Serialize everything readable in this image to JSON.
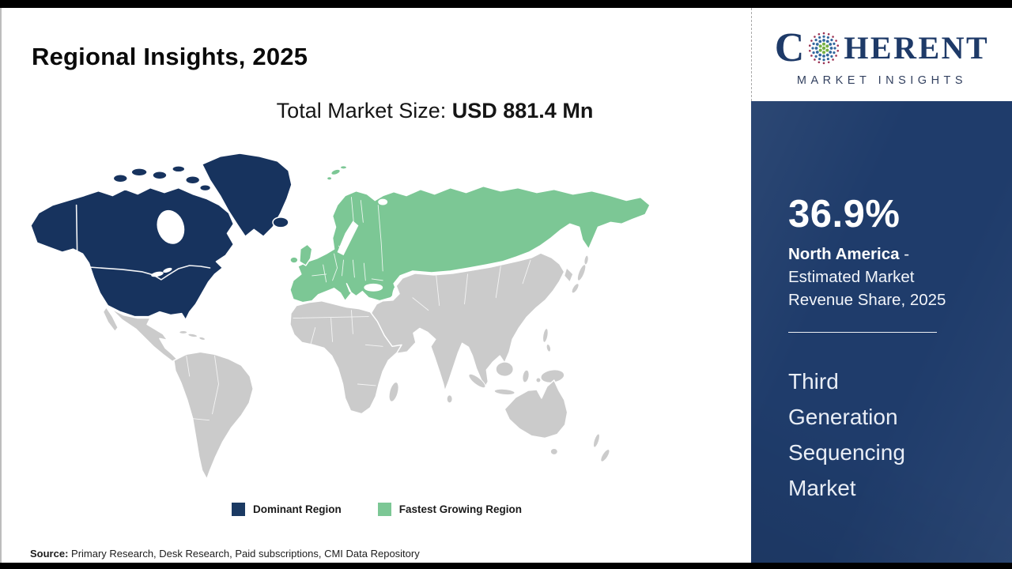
{
  "header": {
    "title": "Regional Insights, 2025"
  },
  "market_size": {
    "label": "Total Market Size: ",
    "value": "USD 881.4 Mn"
  },
  "logo": {
    "brand_c": "C",
    "brand_rest": "HERENT",
    "subtitle": "MARKET INSIGHTS",
    "dot_colors": {
      "green": "#76b043",
      "blue": "#33689e",
      "maroon": "#9c3353"
    }
  },
  "map": {
    "colors": {
      "dominant": "#17335e",
      "fastest_growing": "#7cc795",
      "other": "#cbcbcb",
      "border": "#ffffff"
    },
    "regions": {
      "dominant": [
        "North America",
        "Greenland",
        "Iceland"
      ],
      "fastest_growing": [
        "Europe",
        "Russia",
        "Turkey"
      ],
      "other": [
        "Latin America",
        "Africa",
        "Middle East",
        "Asia",
        "Oceania"
      ]
    }
  },
  "legend": {
    "items": [
      {
        "label": "Dominant Region",
        "color": "#1b3a63"
      },
      {
        "label": "Fastest Growing Region",
        "color": "#7cc795"
      }
    ]
  },
  "sidebar": {
    "bg": "#1f3c6b",
    "share_value": "36.9%",
    "region": "North America",
    "share_desc": " - Estimated Market Revenue Share, 2025",
    "market_name": "Third Generation Sequencing Market"
  },
  "source": {
    "label": "Source:",
    "text": " Primary Research, Desk Research, Paid subscriptions, CMI Data Repository"
  }
}
